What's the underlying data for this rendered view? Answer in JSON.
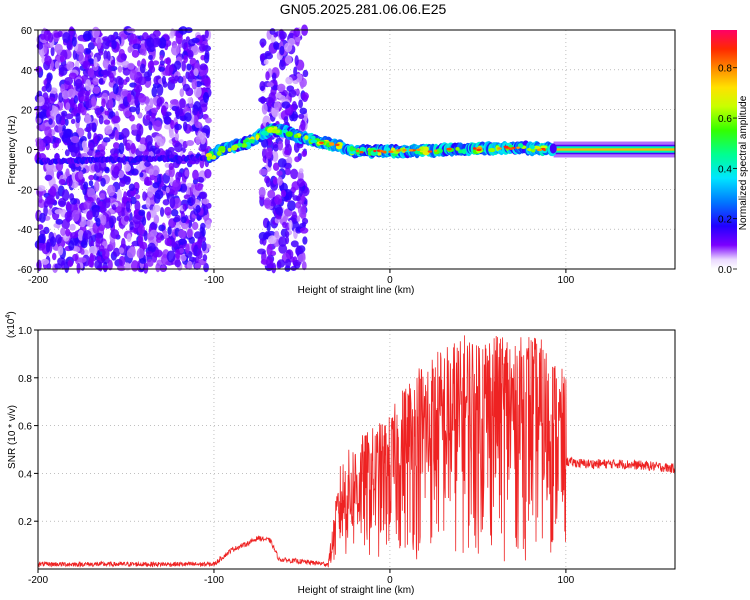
{
  "title": "GN05.2025.281.06.06.E25",
  "chart_data": [
    {
      "type": "heatmap",
      "name": "spectrogram",
      "xlabel": "Height of straight line (km)",
      "ylabel": "Frequency (Hz)",
      "xlim": [
        -200,
        162
      ],
      "ylim": [
        -60,
        60
      ],
      "xticks": [
        "-200",
        "-100",
        "0",
        "100"
      ],
      "xtick_values": [
        -200,
        -100,
        0,
        100
      ],
      "yticks": [
        "-60",
        "-40",
        "-20",
        "0",
        "20",
        "40",
        "60"
      ],
      "ytick_values": [
        -60,
        -40,
        -20,
        0,
        20,
        40,
        60
      ],
      "regions": [
        {
          "x": [
            -200,
            -103
          ],
          "desc": "sparse broadband noise",
          "level": 0.15
        },
        {
          "x": [
            -73,
            -48
          ],
          "desc": "sparse broadband noise",
          "level": 0.12
        },
        {
          "x": [
            -103,
            93
          ],
          "desc": "signal ridge near 0 Hz",
          "level": 0.4
        },
        {
          "x": [
            93,
            162
          ],
          "desc": "steady narrow band at 0 Hz",
          "level": 0.35
        }
      ],
      "ridge": [
        {
          "x": -200,
          "f": -6
        },
        {
          "x": -150,
          "f": -5
        },
        {
          "x": -103,
          "f": -4
        },
        {
          "x": -95,
          "f": 0
        },
        {
          "x": -80,
          "f": 4
        },
        {
          "x": -68,
          "f": 10
        },
        {
          "x": -60,
          "f": 9
        },
        {
          "x": -50,
          "f": 6
        },
        {
          "x": -40,
          "f": 4
        },
        {
          "x": -30,
          "f": 2
        },
        {
          "x": -20,
          "f": -1
        },
        {
          "x": 0,
          "f": -1
        },
        {
          "x": 40,
          "f": 0
        },
        {
          "x": 70,
          "f": 1
        },
        {
          "x": 93,
          "f": 0
        },
        {
          "x": 162,
          "f": 0
        }
      ],
      "colorbar": {
        "label": "Normalized spectral amplitude",
        "range": [
          0,
          0.95
        ],
        "ticks": [
          "0.0",
          "0.2",
          "0.4",
          "0.6",
          "0.8"
        ],
        "tick_values": [
          0,
          0.2,
          0.4,
          0.6,
          0.8
        ]
      }
    },
    {
      "type": "line",
      "name": "snr",
      "xlabel": "Height of straight line (km)",
      "ylabel": "SNR (10 * v/v)",
      "scale_label": "(x10",
      "scale_exp": "4",
      "xlim": [
        -200,
        162
      ],
      "ylim": [
        0,
        1.0
      ],
      "xticks": [
        "-200",
        "-100",
        "0",
        "100"
      ],
      "xtick_values": [
        -200,
        -100,
        0,
        100
      ],
      "yticks": [
        "0.2",
        "0.4",
        "0.6",
        "0.8",
        "1.0"
      ],
      "ytick_values": [
        0.2,
        0.4,
        0.6,
        0.8,
        1.0
      ],
      "color": "#ee2222",
      "series": [
        {
          "x": -200,
          "y": 0.02
        },
        {
          "x": -100,
          "y": 0.02
        },
        {
          "x": -95,
          "y": 0.05
        },
        {
          "x": -90,
          "y": 0.08
        },
        {
          "x": -80,
          "y": 0.11
        },
        {
          "x": -75,
          "y": 0.13
        },
        {
          "x": -68,
          "y": 0.12
        },
        {
          "x": -63,
          "y": 0.04
        },
        {
          "x": -35,
          "y": 0.02
        },
        {
          "x": -32,
          "y": 0.12
        },
        {
          "x": -28,
          "y": 0.25
        },
        {
          "x": -20,
          "y": 0.3
        },
        {
          "x": -10,
          "y": 0.33
        },
        {
          "x": 0,
          "y": 0.36
        },
        {
          "x": 10,
          "y": 0.45
        },
        {
          "x": 20,
          "y": 0.5
        },
        {
          "x": 30,
          "y": 0.52
        },
        {
          "x": 40,
          "y": 0.55
        },
        {
          "x": 50,
          "y": 0.57
        },
        {
          "x": 60,
          "y": 0.57
        },
        {
          "x": 70,
          "y": 0.57
        },
        {
          "x": 80,
          "y": 0.56
        },
        {
          "x": 90,
          "y": 0.52
        },
        {
          "x": 100,
          "y": 0.45
        },
        {
          "x": 110,
          "y": 0.44
        },
        {
          "x": 130,
          "y": 0.44
        },
        {
          "x": 150,
          "y": 0.43
        },
        {
          "x": 162,
          "y": 0.42
        }
      ]
    }
  ]
}
